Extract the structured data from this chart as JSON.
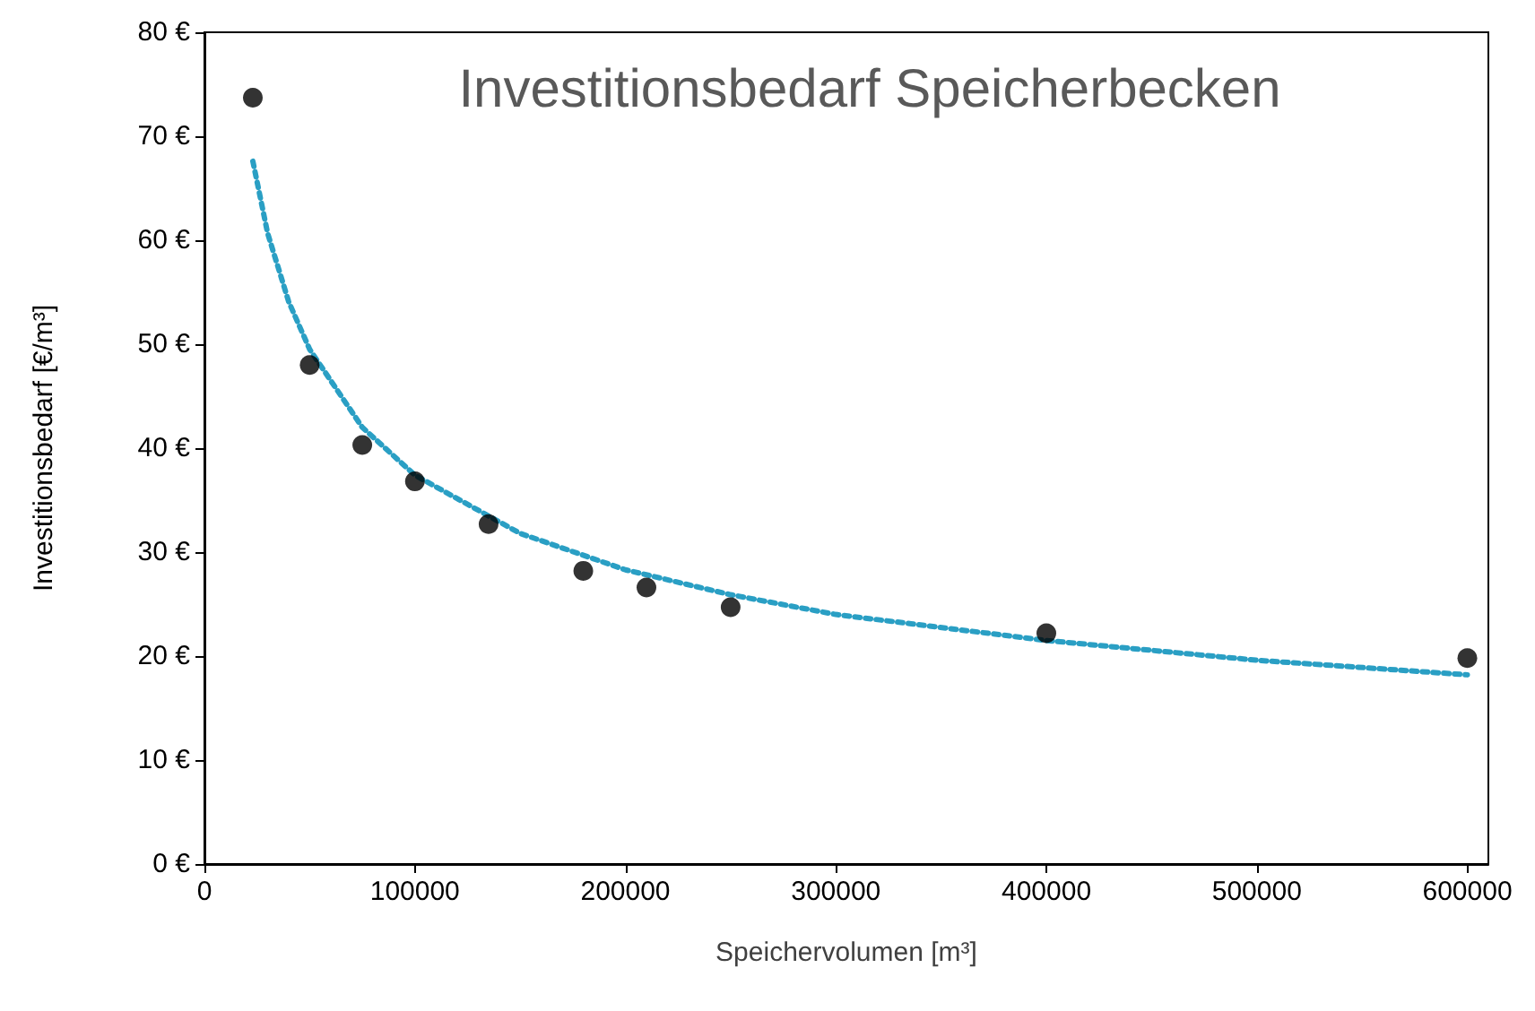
{
  "chart_data": {
    "type": "scatter",
    "title": "Investitionsbedarf Speicherbecken",
    "xlabel": "Speichervolumen [m³]",
    "ylabel": "Investitionsbedarf [€/m³]",
    "xlim": [
      0,
      610000
    ],
    "xticks": [
      0,
      100000,
      200000,
      300000,
      400000,
      500000,
      600000
    ],
    "ylim": [
      0,
      80
    ],
    "yticks": [
      {
        "value": 0,
        "label": "0 €"
      },
      {
        "value": 10,
        "label": "10 €"
      },
      {
        "value": 20,
        "label": "20 €"
      },
      {
        "value": 30,
        "label": "30 €"
      },
      {
        "value": 40,
        "label": "40 €"
      },
      {
        "value": 50,
        "label": "50 €"
      },
      {
        "value": 60,
        "label": "60 €"
      },
      {
        "value": 70,
        "label": "70 €"
      },
      {
        "value": 80,
        "label": "80 €"
      }
    ],
    "grid": false,
    "series": [
      {
        "color": "#000000",
        "marker": "circle",
        "x": [
          23000,
          50000,
          75000,
          100000,
          135000,
          180000,
          210000,
          250000,
          400000,
          600000
        ],
        "values": [
          73.7,
          48.0,
          40.3,
          36.8,
          32.7,
          28.2,
          26.6,
          24.7,
          22.2,
          19.8
        ]
      },
      {
        "type": "line",
        "color": "#2a9fc4",
        "marker": "none",
        "line_style": "dotted",
        "x": [
          23000,
          30000,
          40000,
          50000,
          75000,
          100000,
          150000,
          200000,
          250000,
          300000,
          400000,
          500000,
          600000
        ],
        "values": [
          67.6,
          60.7,
          54.1,
          49.5,
          42.0,
          37.4,
          31.8,
          28.3,
          25.9,
          24.0,
          21.5,
          19.6,
          18.2
        ]
      }
    ]
  }
}
